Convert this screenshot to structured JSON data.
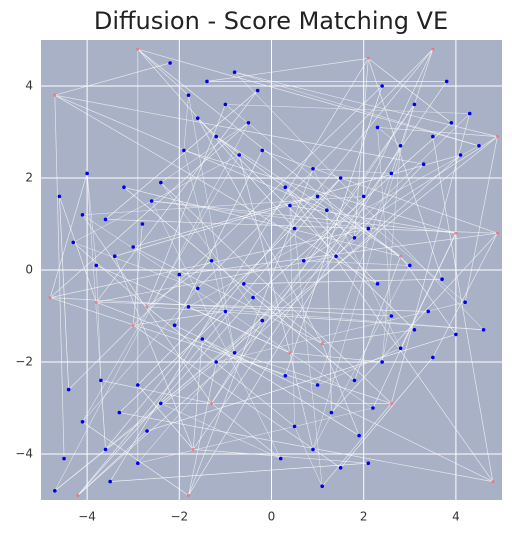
{
  "chart_data": {
    "type": "scatter",
    "title": "Diffusion - Score Matching VE",
    "xlim": [
      -5,
      5
    ],
    "ylim": [
      -5,
      5
    ],
    "xticks": [
      {
        "value": -4,
        "label": "−4"
      },
      {
        "value": -2,
        "label": "−2"
      },
      0,
      2,
      4
    ],
    "yticks": [
      {
        "value": -4,
        "label": "−4"
      },
      {
        "value": -2,
        "label": "−2"
      },
      0,
      2,
      4
    ],
    "grid": true,
    "background": "#a9b1c6",
    "series": [
      {
        "color": "#0000ee",
        "x": [
          -2.2,
          -1.8,
          -1.4,
          -0.8,
          -0.3,
          -0.5,
          -1.2,
          -1.9,
          -0.2,
          -1.0,
          -1.6,
          -0.7,
          2.4,
          3.1,
          3.8,
          4.3,
          3.5,
          2.8,
          4.1,
          2.6,
          3.3,
          4.5,
          3.9,
          2.3,
          -4.6,
          -4.0,
          -3.2,
          -2.6,
          -3.6,
          -4.3,
          -3.0,
          -3.8,
          -2.8,
          -4.1,
          -3.4,
          -2.4,
          0.3,
          0.9,
          1.5,
          2.0,
          1.2,
          0.5,
          1.8,
          0.7,
          1.4,
          2.1,
          1.0,
          0.4,
          -2.0,
          -1.3,
          -0.6,
          -1.8,
          -1.0,
          -0.2,
          -1.5,
          -0.8,
          -2.1,
          -1.2,
          -0.4,
          -1.6,
          2.3,
          3.0,
          3.7,
          4.2,
          3.4,
          2.6,
          4.0,
          2.8,
          3.5,
          4.6,
          3.1,
          2.4,
          -4.4,
          -3.7,
          -2.9,
          -2.4,
          -3.3,
          -4.1,
          -2.7,
          -3.6,
          -4.5,
          -2.9,
          -3.5,
          -4.7,
          0.3,
          1.0,
          1.8,
          2.2,
          1.3,
          0.5,
          1.9,
          0.9,
          1.5,
          0.2,
          2.1,
          1.1
        ],
        "y": [
          4.5,
          3.8,
          4.1,
          4.3,
          3.9,
          3.2,
          2.9,
          2.6,
          2.6,
          3.6,
          3.3,
          2.5,
          4.0,
          3.6,
          4.1,
          3.4,
          2.9,
          2.7,
          2.5,
          2.1,
          2.3,
          2.7,
          3.2,
          3.1,
          1.6,
          2.1,
          1.8,
          1.5,
          1.1,
          0.6,
          0.5,
          0.1,
          1.0,
          1.2,
          0.3,
          1.9,
          1.8,
          2.2,
          2.0,
          1.6,
          1.3,
          0.9,
          0.7,
          0.2,
          0.3,
          0.9,
          1.6,
          1.4,
          -0.1,
          0.2,
          -0.3,
          -0.8,
          -0.9,
          -1.1,
          -1.5,
          -1.8,
          -1.2,
          -2.0,
          -0.6,
          -0.4,
          -0.3,
          0.1,
          -0.2,
          -0.7,
          -0.9,
          -1.0,
          -1.4,
          -1.7,
          -1.9,
          -1.3,
          -1.3,
          -2.0,
          -2.6,
          -2.4,
          -2.5,
          -2.9,
          -3.1,
          -3.3,
          -3.5,
          -3.9,
          -4.1,
          -4.2,
          -4.6,
          -4.8,
          -2.3,
          -2.5,
          -2.4,
          -3.0,
          -3.1,
          -3.4,
          -3.6,
          -3.9,
          -4.3,
          -4.1,
          -4.2,
          -4.7
        ]
      },
      {
        "color": "#ff5a5a",
        "x": [
          -4.7,
          -2.9,
          2.1,
          4.9,
          -3.8,
          -4.8,
          2.8,
          4.0,
          4.9,
          -2.7,
          1.1,
          0.4,
          -3.0,
          -1.3,
          -1.7,
          2.6,
          4.8,
          -1.8,
          -4.2,
          3.5
        ],
        "y": [
          3.8,
          4.8,
          4.6,
          2.9,
          -0.7,
          -0.6,
          0.3,
          0.8,
          0.8,
          -0.8,
          -1.6,
          -1.8,
          -1.2,
          -2.9,
          -3.9,
          -2.9,
          -4.6,
          -4.9,
          -4.9,
          4.8
        ]
      }
    ]
  }
}
